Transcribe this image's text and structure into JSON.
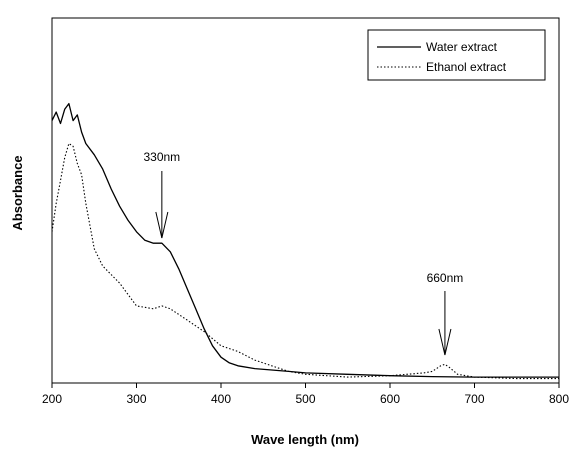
{
  "chart_data": {
    "type": "line",
    "title": "",
    "xlabel": "Wave length (nm)",
    "ylabel": "Absorbance",
    "xlim": [
      200,
      800
    ],
    "ylim": [
      0,
      1
    ],
    "x_ticks": [
      200,
      300,
      400,
      500,
      600,
      700,
      800
    ],
    "y_ticks_shown": false,
    "grid": false,
    "legend_position": "top-right",
    "series": [
      {
        "name": "Water extract",
        "style": "solid",
        "color": "#000000",
        "x": [
          200,
          205,
          210,
          215,
          220,
          225,
          230,
          235,
          240,
          250,
          260,
          270,
          280,
          290,
          300,
          310,
          320,
          330,
          340,
          350,
          360,
          370,
          380,
          390,
          400,
          410,
          420,
          440,
          460,
          480,
          500,
          550,
          600,
          650,
          700,
          750,
          800
        ],
        "values": [
          0.91,
          0.94,
          0.9,
          0.95,
          0.97,
          0.91,
          0.93,
          0.87,
          0.83,
          0.79,
          0.74,
          0.67,
          0.61,
          0.56,
          0.52,
          0.49,
          0.48,
          0.48,
          0.45,
          0.39,
          0.32,
          0.25,
          0.18,
          0.12,
          0.08,
          0.06,
          0.05,
          0.04,
          0.035,
          0.03,
          0.025,
          0.02,
          0.015,
          0.012,
          0.01,
          0.01,
          0.01
        ]
      },
      {
        "name": "Ethanol extract",
        "style": "dotted",
        "color": "#000000",
        "x": [
          200,
          205,
          210,
          215,
          220,
          225,
          230,
          235,
          240,
          250,
          260,
          280,
          300,
          320,
          330,
          340,
          360,
          380,
          400,
          410,
          420,
          440,
          460,
          480,
          500,
          550,
          600,
          640,
          650,
          660,
          665,
          670,
          680,
          700,
          750,
          800
        ],
        "values": [
          0.52,
          0.62,
          0.7,
          0.78,
          0.83,
          0.82,
          0.76,
          0.72,
          0.62,
          0.46,
          0.4,
          0.34,
          0.26,
          0.25,
          0.26,
          0.25,
          0.21,
          0.17,
          0.12,
          0.11,
          0.1,
          0.07,
          0.05,
          0.03,
          0.02,
          0.01,
          0.015,
          0.025,
          0.03,
          0.05,
          0.055,
          0.045,
          0.02,
          0.01,
          0.005,
          0.005
        ]
      }
    ],
    "annotations": [
      {
        "text": "330nm",
        "x": 330
      },
      {
        "text": "660nm",
        "x": 665
      }
    ]
  }
}
